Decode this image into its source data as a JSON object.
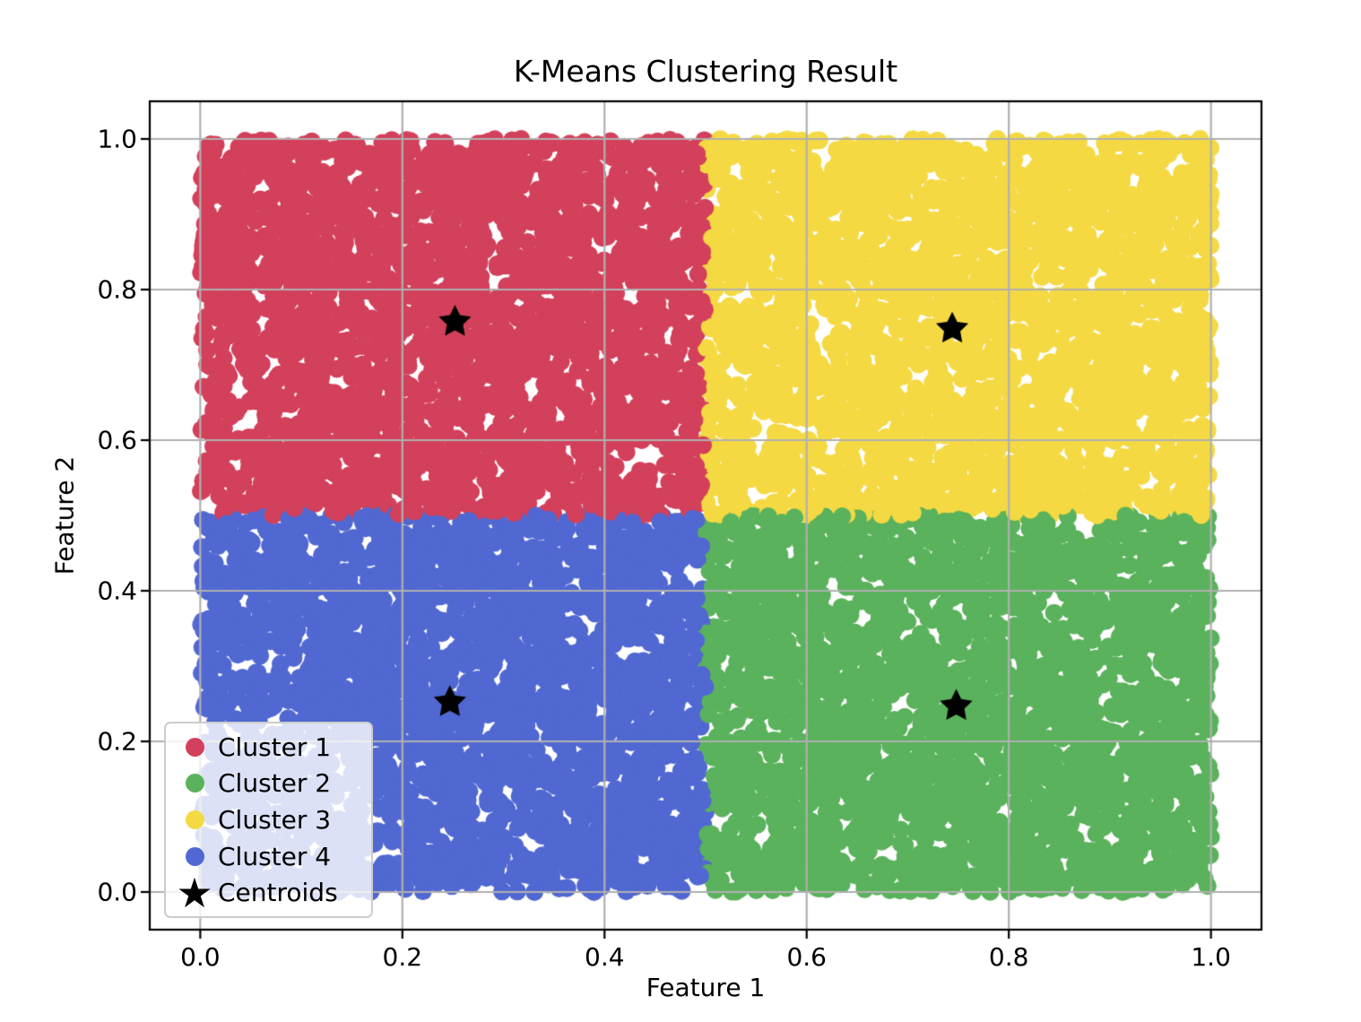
{
  "chart_data": {
    "type": "scatter",
    "title": "K-Means Clustering Result",
    "xlabel": "Feature 1",
    "ylabel": "Feature 2",
    "xlim": [
      -0.05,
      1.05
    ],
    "ylim": [
      -0.05,
      1.05
    ],
    "grid": true,
    "grid_color": "#B0B0B0",
    "spine_color": "#000000",
    "background_color": "#FFFFFF",
    "seed": 42,
    "xticks": [
      {
        "value": 0.0,
        "label": "0.0"
      },
      {
        "value": 0.2,
        "label": "0.2"
      },
      {
        "value": 0.4,
        "label": "0.4"
      },
      {
        "value": 0.6,
        "label": "0.6"
      },
      {
        "value": 0.8,
        "label": "0.8"
      },
      {
        "value": 1.0,
        "label": "1.0"
      }
    ],
    "yticks": [
      {
        "value": 0.0,
        "label": "0.0"
      },
      {
        "value": 0.2,
        "label": "0.2"
      },
      {
        "value": 0.4,
        "label": "0.4"
      },
      {
        "value": 0.6,
        "label": "0.6"
      },
      {
        "value": 0.8,
        "label": "0.8"
      },
      {
        "value": 1.0,
        "label": "1.0"
      }
    ],
    "series": [
      {
        "name": "Cluster 1",
        "color": "#D3405B",
        "distribution": "uniform",
        "x_range": [
          0.0,
          0.5
        ],
        "y_range": [
          0.5,
          1.0
        ],
        "n_points": 2600,
        "marker": "circle",
        "marker_radius_px": 10
      },
      {
        "name": "Cluster 2",
        "color": "#5AB25C",
        "distribution": "uniform",
        "x_range": [
          0.5,
          1.0
        ],
        "y_range": [
          0.0,
          0.5
        ],
        "n_points": 2600,
        "marker": "circle",
        "marker_radius_px": 10
      },
      {
        "name": "Cluster 3",
        "color": "#F5D943",
        "distribution": "uniform",
        "x_range": [
          0.5,
          1.0
        ],
        "y_range": [
          0.5,
          1.0
        ],
        "n_points": 2600,
        "marker": "circle",
        "marker_radius_px": 10
      },
      {
        "name": "Cluster 4",
        "color": "#5168D2",
        "distribution": "uniform",
        "x_range": [
          0.0,
          0.5
        ],
        "y_range": [
          0.0,
          0.5
        ],
        "n_points": 2600,
        "marker": "circle",
        "marker_radius_px": 10
      }
    ],
    "centroids": {
      "name": "Centroids",
      "color": "#000000",
      "marker": "star",
      "marker_outer_radius_px": 19,
      "marker_inner_ratio": 0.5,
      "points": [
        [
          0.252,
          0.757
        ],
        [
          0.744,
          0.748
        ],
        [
          0.247,
          0.252
        ],
        [
          0.748,
          0.247
        ]
      ]
    },
    "legend": {
      "position": "lower-left",
      "entries": [
        {
          "label": "Cluster 1",
          "marker": "circle",
          "color": "#D3405B"
        },
        {
          "label": "Cluster 2",
          "marker": "circle",
          "color": "#5AB25C"
        },
        {
          "label": "Cluster 3",
          "marker": "circle",
          "color": "#F5D943"
        },
        {
          "label": "Cluster 4",
          "marker": "circle",
          "color": "#5168D2"
        },
        {
          "label": "Centroids",
          "marker": "star",
          "color": "#000000"
        }
      ]
    }
  }
}
